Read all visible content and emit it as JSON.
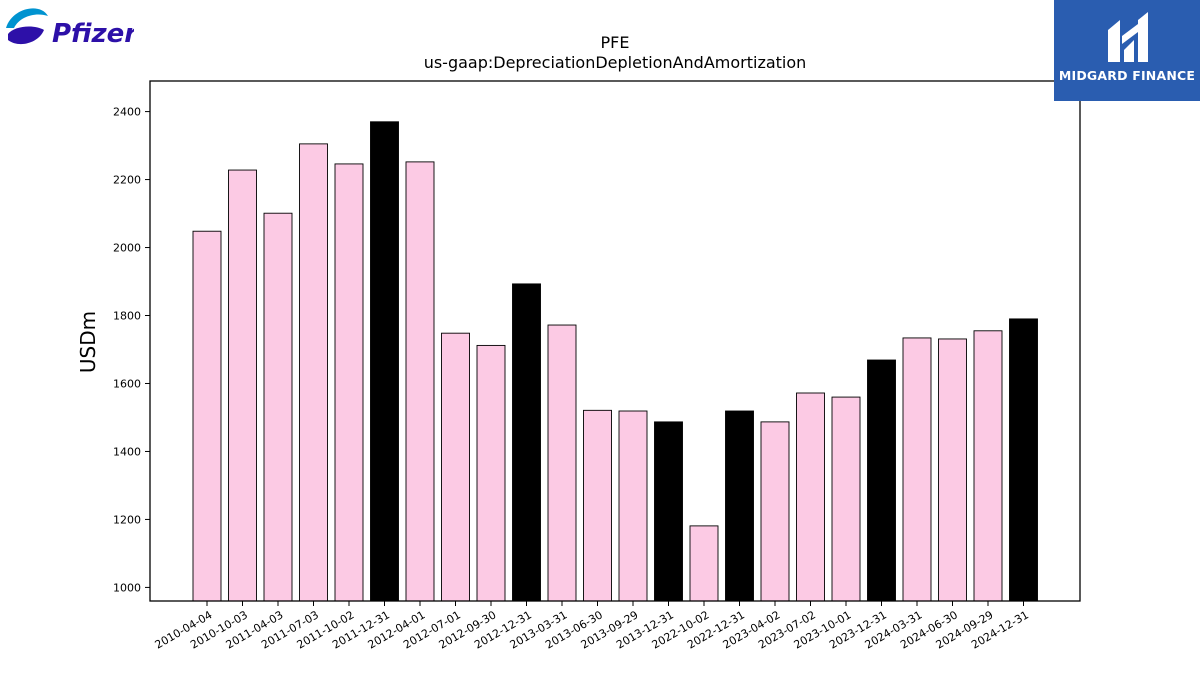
{
  "brand": {
    "left_logo_text": "Pfizer",
    "right_logo_text": "MIDGARD FINANCE"
  },
  "colors": {
    "bar_pink": "#fccae4",
    "bar_black": "#000000",
    "midgard_blue": "#2a5db0",
    "pfizer_blue": "#0093d0",
    "pfizer_purple": "#2d10a8"
  },
  "chart_data": {
    "type": "bar",
    "title": "PFE",
    "subtitle": "us-gaap:DepreciationDepletionAndAmortization",
    "xlabel": "",
    "ylabel": "USDm",
    "ylim": [
      960,
      2490
    ],
    "yticks": [
      1000,
      1200,
      1400,
      1600,
      1800,
      2000,
      2200,
      2400
    ],
    "grid": false,
    "categories": [
      "2010-04-04",
      "2010-10-03",
      "2011-04-03",
      "2011-07-03",
      "2011-10-02",
      "2011-12-31",
      "2012-04-01",
      "2012-07-01",
      "2012-09-30",
      "2012-12-31",
      "2013-03-31",
      "2013-06-30",
      "2013-09-29",
      "2013-12-31",
      "2022-10-02",
      "2022-12-31",
      "2023-04-02",
      "2023-07-02",
      "2023-10-01",
      "2023-12-31",
      "2024-03-31",
      "2024-06-30",
      "2024-09-29",
      "2024-12-31"
    ],
    "values": [
      2048,
      2228,
      2101,
      2305,
      2246,
      2370,
      2252,
      1748,
      1712,
      1893,
      1772,
      1521,
      1519,
      1487,
      1181,
      1519,
      1487,
      1572,
      1560,
      1669,
      1734,
      1731,
      1755,
      1790
    ],
    "highlight": [
      false,
      false,
      false,
      false,
      false,
      true,
      false,
      false,
      false,
      true,
      false,
      false,
      false,
      true,
      false,
      true,
      false,
      false,
      false,
      true,
      false,
      false,
      false,
      true
    ]
  }
}
